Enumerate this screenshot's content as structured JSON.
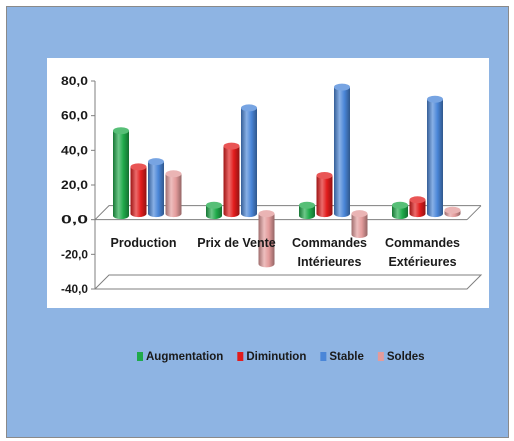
{
  "chart_data": {
    "type": "bar",
    "title": "",
    "xlabel": "",
    "ylabel": "",
    "categories": [
      [
        "Production"
      ],
      [
        "Prix de Vente"
      ],
      [
        "Commandes",
        "Intérieures"
      ],
      [
        "Commandes",
        "Extérieures"
      ]
    ],
    "series": [
      {
        "name": "Augmentation",
        "color": "#1faa4a",
        "values": [
          49,
          6,
          6,
          6
        ]
      },
      {
        "name": "Diminution",
        "color": "#e21c1c",
        "values": [
          27,
          39,
          22,
          8
        ]
      },
      {
        "name": "Stable",
        "color": "#4a86d8",
        "values": [
          30,
          61,
          73,
          66
        ]
      },
      {
        "name": "Soldes",
        "color": "#e39b9b",
        "values": [
          23,
          -29,
          -12,
          2
        ]
      }
    ],
    "ylim": [
      -40,
      80
    ],
    "yticks": [
      "80,0",
      "60,0",
      "40,0",
      "20,0",
      "0,0",
      "-20,0",
      "-40,0"
    ],
    "ytick_values": [
      80,
      60,
      40,
      20,
      0,
      -20,
      -40
    ],
    "grid": false,
    "legend_position": "bottom",
    "style": "3d-cylinder"
  }
}
